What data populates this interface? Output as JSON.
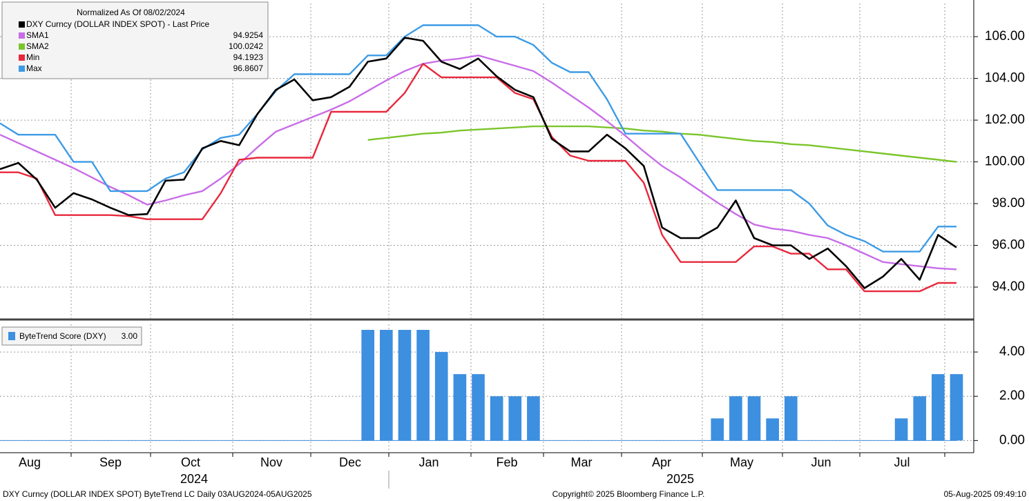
{
  "chart_data": [
    {
      "type": "line",
      "title": "Normalized As Of 08/02/2024",
      "ylim": [
        92.48,
        107.59
      ],
      "yticks": [
        {
          "value": 94,
          "label": "94.00"
        },
        {
          "value": 96,
          "label": "96.00"
        },
        {
          "value": 98,
          "label": "98.00"
        },
        {
          "value": 100,
          "label": "100.00"
        },
        {
          "value": 102,
          "label": "102.00"
        },
        {
          "value": 104,
          "label": "104.00"
        },
        {
          "value": 106,
          "label": "106.00"
        }
      ],
      "grid": true,
      "series": [
        {
          "name": "DXY Curncy (DOLLAR INDEX SPOT) - Last Price",
          "color": "#000000",
          "values": [
            99.65,
            99.95,
            99.15,
            97.8,
            98.5,
            98.2,
            97.8,
            97.45,
            97.5,
            99.1,
            99.15,
            100.65,
            101.0,
            100.8,
            102.3,
            103.45,
            103.95,
            102.95,
            103.1,
            103.6,
            104.8,
            104.95,
            105.95,
            105.8,
            104.8,
            104.45,
            104.95,
            104.1,
            103.45,
            103.1,
            101.1,
            100.5,
            100.5,
            101.3,
            100.65,
            99.8,
            96.85,
            96.35,
            96.35,
            96.85,
            98.15,
            96.35,
            96.0,
            96.0,
            95.35,
            95.85,
            95.0,
            93.95,
            94.5,
            95.35,
            94.35,
            96.5,
            95.9
          ]
        },
        {
          "name": "SMA1",
          "color": "#c86de8",
          "last": 94.9254,
          "values": [
            101.3,
            100.9,
            100.5,
            100.1,
            99.7,
            99.25,
            98.8,
            98.4,
            97.95,
            98.15,
            98.4,
            98.6,
            99.2,
            99.9,
            100.7,
            101.45,
            101.8,
            102.15,
            102.5,
            102.9,
            103.4,
            103.9,
            104.35,
            104.7,
            104.85,
            104.95,
            105.1,
            104.85,
            104.6,
            104.35,
            103.8,
            103.2,
            102.6,
            101.95,
            101.25,
            100.5,
            99.8,
            99.25,
            98.65,
            98.05,
            97.5,
            97.0,
            96.8,
            96.7,
            96.5,
            96.35,
            96.0,
            95.6,
            95.2,
            95.1,
            95.0,
            94.9,
            94.85
          ]
        },
        {
          "name": "SMA2",
          "color": "#7ac52a",
          "last": 100.0242,
          "values": [
            null,
            null,
            null,
            null,
            null,
            null,
            null,
            null,
            null,
            null,
            null,
            null,
            null,
            null,
            null,
            null,
            null,
            null,
            null,
            null,
            101.05,
            101.15,
            101.25,
            101.35,
            101.4,
            101.5,
            101.55,
            101.6,
            101.65,
            101.7,
            101.7,
            101.7,
            101.7,
            101.65,
            101.6,
            101.5,
            101.45,
            101.35,
            101.3,
            101.2,
            101.1,
            101.0,
            100.95,
            100.85,
            100.8,
            100.7,
            100.6,
            100.5,
            100.4,
            100.3,
            100.2,
            100.1,
            100.0
          ]
        },
        {
          "name": "Min",
          "color": "#e8283c",
          "last": 94.1923,
          "values": [
            99.5,
            99.5,
            99.2,
            97.45,
            97.45,
            97.45,
            97.45,
            97.4,
            97.25,
            97.25,
            97.25,
            97.25,
            98.5,
            100.1,
            100.2,
            100.2,
            100.2,
            100.2,
            102.4,
            102.4,
            102.4,
            102.4,
            103.3,
            104.7,
            104.05,
            104.05,
            104.05,
            104.05,
            103.3,
            103.0,
            101.2,
            100.3,
            100.05,
            100.05,
            100.05,
            99.0,
            96.5,
            95.2,
            95.2,
            95.2,
            95.2,
            95.95,
            95.95,
            95.6,
            95.6,
            94.85,
            94.85,
            93.8,
            93.8,
            93.8,
            93.8,
            94.2,
            94.2
          ]
        },
        {
          "name": "Max",
          "color": "#3c9be6",
          "last": 96.8607,
          "values": [
            101.85,
            101.3,
            101.3,
            101.3,
            100.0,
            100.0,
            98.6,
            98.6,
            98.6,
            99.2,
            99.5,
            100.6,
            101.15,
            101.3,
            102.3,
            103.4,
            104.2,
            104.2,
            104.2,
            104.2,
            105.1,
            105.1,
            106.0,
            106.55,
            106.55,
            106.55,
            106.55,
            106.0,
            106.0,
            105.6,
            104.75,
            104.3,
            104.3,
            103.0,
            101.35,
            101.35,
            101.35,
            101.35,
            100.0,
            98.65,
            98.65,
            98.65,
            98.65,
            98.65,
            98.0,
            96.95,
            96.5,
            96.2,
            95.7,
            95.7,
            95.7,
            96.9,
            96.9
          ]
        }
      ]
    },
    {
      "type": "bar",
      "ylim": [
        -0.55,
        5.25
      ],
      "yticks": [
        {
          "value": 0,
          "label": "0.00"
        },
        {
          "value": 2,
          "label": "2.00"
        },
        {
          "value": 4,
          "label": "4.00"
        }
      ],
      "grid": true,
      "months": [
        "Aug",
        "Sep",
        "Oct",
        "Nov",
        "Dec",
        "Jan",
        "Feb",
        "Mar",
        "Apr",
        "May",
        "Jun",
        "Jul"
      ],
      "years": [
        "2024",
        "2025"
      ],
      "series": [
        {
          "name": "ByteTrend Score (DXY)",
          "last_label": "3.00",
          "color": "#3d8fe0",
          "values": [
            0,
            0,
            0,
            0,
            0,
            0,
            0,
            0,
            0,
            0,
            0,
            0,
            0,
            0,
            0,
            0,
            0,
            0,
            0,
            0,
            5,
            5,
            5,
            5,
            4,
            3,
            3,
            2,
            2,
            2,
            0,
            0,
            0,
            0,
            0,
            0,
            0,
            0,
            0,
            1,
            2,
            2,
            1,
            2,
            0,
            0,
            0,
            0,
            0,
            1,
            2,
            3,
            3
          ]
        }
      ]
    }
  ],
  "footer": {
    "left": "DXY Curncy (DOLLAR INDEX SPOT) ByteTrend LC  Daily 03AUG2024-05AUG2025",
    "center": "Copyright© 2025 Bloomberg Finance L.P.",
    "right": "05-Aug-2025 09:49:10"
  }
}
